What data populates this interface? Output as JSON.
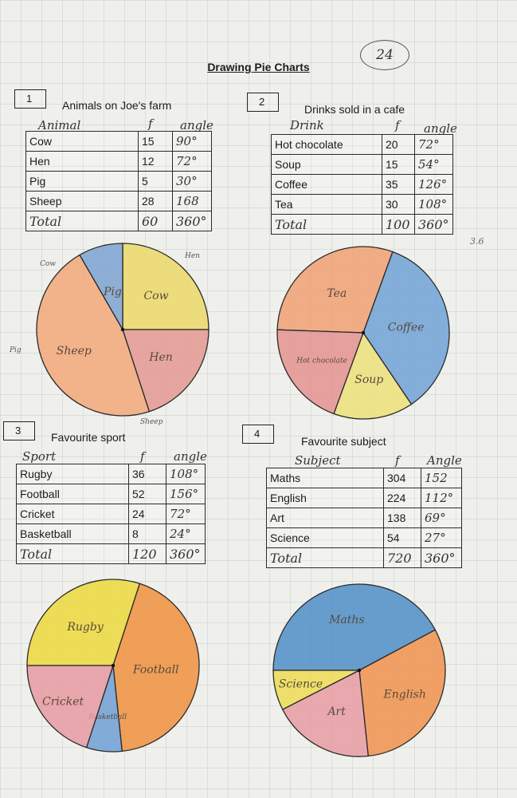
{
  "worksheet": {
    "title": "Drawing Pie Charts",
    "score": "24",
    "side_note": "3.6"
  },
  "chart_data": [
    {
      "type": "pie",
      "number": "1",
      "title": "Animals on Joe's farm",
      "headers": {
        "category": "Animal",
        "frequency": "f",
        "angle": "angle"
      },
      "rows": [
        {
          "label": "Cow",
          "value": "15",
          "angle_text": "90°",
          "angle": 90,
          "color": "#ecd869"
        },
        {
          "label": "Hen",
          "value": "12",
          "angle_text": "72°",
          "angle": 72,
          "color": "#e49891"
        },
        {
          "label": "Pig",
          "value": "5",
          "angle_text": "30°",
          "angle": 30,
          "color": "#7ba3d2"
        },
        {
          "label": "Sheep",
          "value": "28",
          "angle_text": "168",
          "angle": 168,
          "color": "#f2a87a"
        }
      ],
      "total": {
        "label": "Total",
        "value": "60",
        "angle_text": "360°"
      },
      "slice_labels": [
        "Cow",
        "Hen",
        "Pig",
        "Sheep"
      ],
      "margin_labels": [
        "Cow",
        "Hen",
        "Pig",
        "Sheep"
      ]
    },
    {
      "type": "pie",
      "number": "2",
      "title": "Drinks sold in a cafe",
      "headers": {
        "category": "Drink",
        "frequency": "f",
        "angle": "angle"
      },
      "rows": [
        {
          "label": "Hot chocolate",
          "value": "20",
          "angle_text": "72°",
          "angle": 72,
          "color": "#e4928f"
        },
        {
          "label": "Soup",
          "value": "15",
          "angle_text": "54°",
          "angle": 54,
          "color": "#ece07a"
        },
        {
          "label": "Coffee",
          "value": "35",
          "angle_text": "126°",
          "angle": 126,
          "color": "#6fa2d6"
        },
        {
          "label": "Tea",
          "value": "30",
          "angle_text": "108°",
          "angle": 108,
          "color": "#f0a073"
        }
      ],
      "total": {
        "label": "Total",
        "value": "100",
        "angle_text": "360°"
      },
      "slice_labels": [
        "Hot chocolate",
        "Soup",
        "Coffee",
        "Tea"
      ],
      "margin_labels": []
    },
    {
      "type": "pie",
      "number": "3",
      "title": "Favourite sport",
      "headers": {
        "category": "Sport",
        "frequency": "f",
        "angle": "angle"
      },
      "rows": [
        {
          "label": "Rugby",
          "value": "36",
          "angle_text": "108°",
          "angle": 108,
          "color": "#ecd83c"
        },
        {
          "label": "Football",
          "value": "52",
          "angle_text": "156°",
          "angle": 156,
          "color": "#f0913e"
        },
        {
          "label": "Cricket",
          "value": "24",
          "angle_text": "72°",
          "angle": 72,
          "color": "#e69aa2"
        },
        {
          "label": "Basketball",
          "value": "8",
          "angle_text": "24°",
          "angle": 24,
          "color": "#6e9fd4"
        }
      ],
      "total": {
        "label": "Total",
        "value": "120",
        "angle_text": "360°"
      },
      "slice_labels": [
        "Rugby",
        "Football",
        "Cricket",
        "Basketball"
      ],
      "margin_labels": []
    },
    {
      "type": "pie",
      "number": "4",
      "title": "Favourite subject",
      "headers": {
        "category": "Subject",
        "frequency": "f",
        "angle": "Angle"
      },
      "rows": [
        {
          "label": "Maths",
          "value": "304",
          "angle_text": "152",
          "angle": 152,
          "color": "#4f8ec8"
        },
        {
          "label": "English",
          "value": "224",
          "angle_text": "112°",
          "angle": 112,
          "color": "#f0924e"
        },
        {
          "label": "Art",
          "value": "138",
          "angle_text": "69°",
          "angle": 69,
          "color": "#e89ba3"
        },
        {
          "label": "Science",
          "value": "54",
          "angle_text": "27°",
          "angle": 27,
          "color": "#eddc54"
        }
      ],
      "total": {
        "label": "Total",
        "value": "720",
        "angle_text": "360°"
      },
      "slice_labels": [
        "Maths",
        "English",
        "Art",
        "Science"
      ],
      "margin_labels": []
    }
  ]
}
